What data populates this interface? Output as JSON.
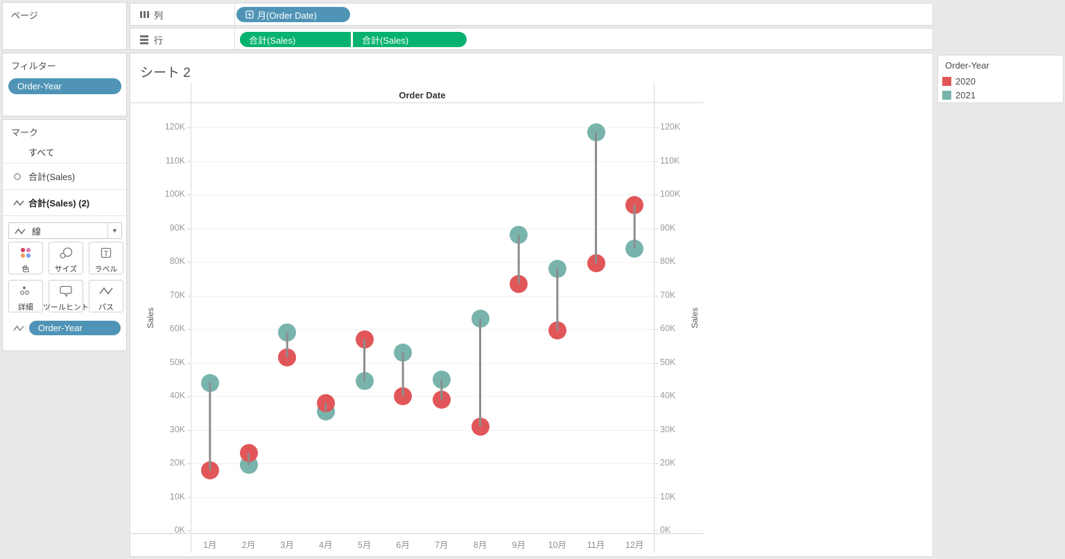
{
  "shelves": {
    "pages_label": "ページ",
    "columns_label": "列",
    "rows_label": "行",
    "columns_pills": [
      {
        "label": "月(Order Date)",
        "color": "#4f94b6",
        "icon": "expand-plus-icon"
      }
    ],
    "rows_pills": [
      {
        "label": "合計(Sales)",
        "color": "#06b26e"
      },
      {
        "label": "合計(Sales)",
        "color": "#06b26e"
      }
    ]
  },
  "filters": {
    "title": "フィルター",
    "pills": [
      {
        "label": "Order-Year",
        "color": "#4f94b6"
      }
    ]
  },
  "marks": {
    "title": "マーク",
    "items": [
      {
        "label": "すべて",
        "icon": "none"
      },
      {
        "label": "合計(Sales)",
        "icon": "circle-mark-icon"
      },
      {
        "label": "合計(Sales) (2)",
        "icon": "line-mark-icon",
        "bold": true
      }
    ],
    "mark_type_dropdown": {
      "label": "線",
      "icon": "line-mark-icon"
    },
    "buttons": [
      {
        "label": "色",
        "icon": "color-dots-icon"
      },
      {
        "label": "サイズ",
        "icon": "size-circles-icon"
      },
      {
        "label": "ラベル",
        "icon": "label-t-icon"
      },
      {
        "label": "詳細",
        "icon": "detail-dots-icon"
      },
      {
        "label": "ツールヒント",
        "icon": "tooltip-bubble-icon"
      },
      {
        "label": "パス",
        "icon": "path-zigzag-icon"
      }
    ],
    "encoding_pills": [
      {
        "label": "Order-Year",
        "color": "#4f94b6",
        "icon": "line-mark-icon"
      }
    ]
  },
  "sheet": {
    "title": "シート 2",
    "column_header": "Order Date",
    "y_axis_title_left": "Sales",
    "y_axis_title_right": "Sales"
  },
  "legend": {
    "title": "Order-Year",
    "entries": [
      {
        "label": "2020",
        "color": "#e15759"
      },
      {
        "label": "2021",
        "color": "#79b4ac"
      }
    ]
  },
  "chart_data": {
    "type": "scatter",
    "subtype": "dumbbell-dual-axis",
    "title": "シート 2",
    "xlabel": "Order Date",
    "ylabel": "Sales",
    "categories": [
      "1月",
      "2月",
      "3月",
      "4月",
      "5月",
      "6月",
      "7月",
      "8月",
      "9月",
      "10月",
      "11月",
      "12月"
    ],
    "series": [
      {
        "name": "2020",
        "color": "#e15759",
        "values_k": [
          18,
          23,
          51.5,
          38,
          57,
          40,
          39,
          31,
          73.5,
          59.5,
          79.5,
          97
        ]
      },
      {
        "name": "2021",
        "color": "#79b4ac",
        "values_k": [
          44,
          19.5,
          59,
          35.5,
          44.5,
          53,
          45,
          63,
          88,
          78,
          118.5,
          84
        ]
      }
    ],
    "ylim_k": [
      0,
      120
    ],
    "ytick_step_k": 10,
    "grid": true,
    "connector_color": "#8c8c8c",
    "legend_position": "right"
  }
}
